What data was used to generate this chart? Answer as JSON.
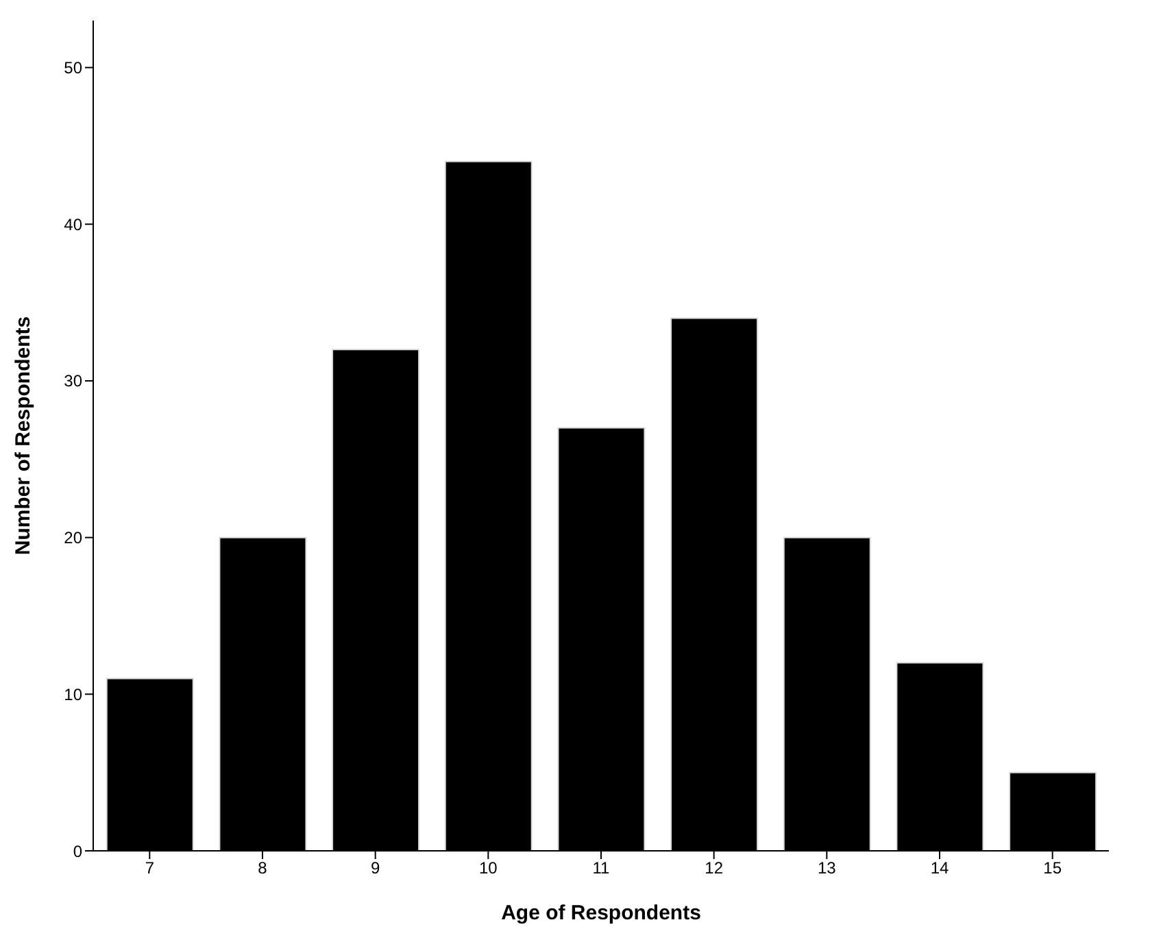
{
  "chart_data": {
    "type": "bar",
    "xlabel": "Age of Respondents",
    "ylabel": "Number of Respondents",
    "categories": [
      "7",
      "8",
      "9",
      "10",
      "11",
      "12",
      "13",
      "14",
      "15"
    ],
    "values": [
      11,
      20,
      32,
      44,
      27,
      34,
      20,
      12,
      5
    ],
    "color": "#000000",
    "ylim": [
      0,
      53
    ],
    "yticks": [
      0,
      10,
      20,
      30,
      40,
      50
    ],
    "grid": false
  }
}
